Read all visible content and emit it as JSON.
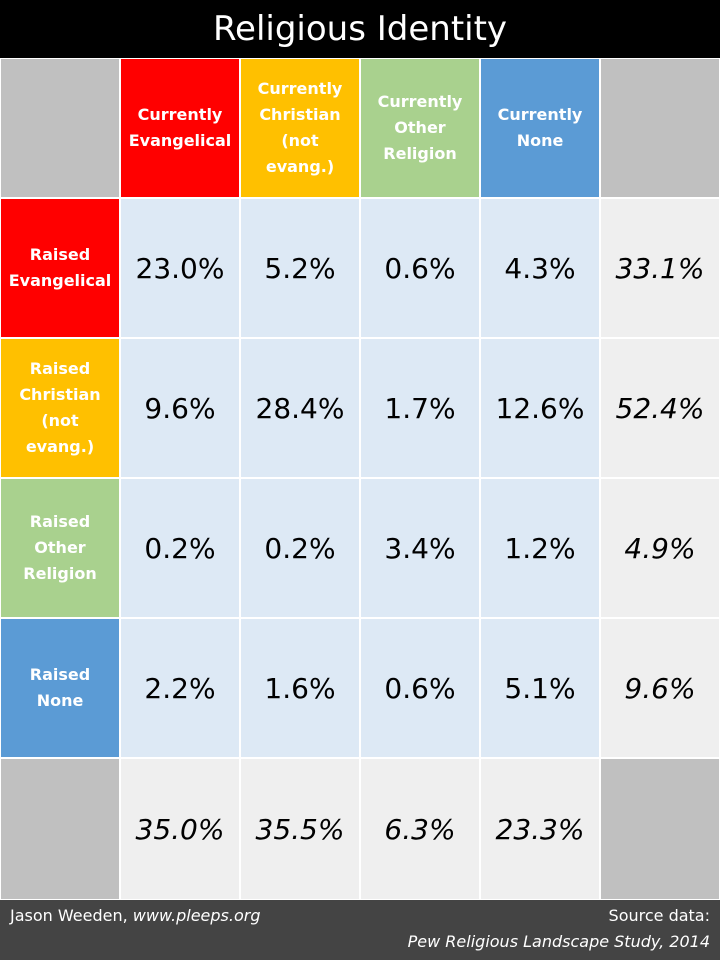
{
  "title": "Religious Identity",
  "colors": {
    "evangelical": "#ff0000",
    "christian": "#ffc000",
    "other": "#a9d18e",
    "none": "#5b9bd5",
    "corner": "#c0c0c0",
    "value_bg": "#dde9f5",
    "total_bg": "#efefef"
  },
  "chart_data": {
    "type": "table",
    "title": "Religious Identity",
    "columns": [
      "Currently Evangelical",
      "Currently Christian (not evang.)",
      "Currently Other Religion",
      "Currently None"
    ],
    "rows": [
      "Raised Evangelical",
      "Raised Christian (not evang.)",
      "Raised Other Religion",
      "Raised None"
    ],
    "values": [
      [
        "23.0%",
        "5.2%",
        "0.6%",
        "4.3%"
      ],
      [
        "9.6%",
        "28.4%",
        "1.7%",
        "12.6%"
      ],
      [
        "0.2%",
        "0.2%",
        "3.4%",
        "1.2%"
      ],
      [
        "2.2%",
        "1.6%",
        "0.6%",
        "5.1%"
      ]
    ],
    "row_totals": [
      "33.1%",
      "52.4%",
      "4.9%",
      "9.6%"
    ],
    "column_totals": [
      "35.0%",
      "35.5%",
      "6.3%",
      "23.3%"
    ]
  },
  "headers": {
    "col": [
      "Currently\nEvangelical",
      "Currently\nChristian\n(not\nevang.)",
      "Currently\nOther\nReligion",
      "Currently\nNone"
    ],
    "row": [
      "Raised\nEvangelical",
      "Raised\nChristian\n(not\nevang.)",
      "Raised\nOther\nReligion",
      "Raised\nNone"
    ]
  },
  "footer": {
    "author": "Jason Weeden,",
    "site": "www.pleeps.org",
    "source_label": "Source data:",
    "source": "Pew Religious Landscape Study, 2014"
  }
}
